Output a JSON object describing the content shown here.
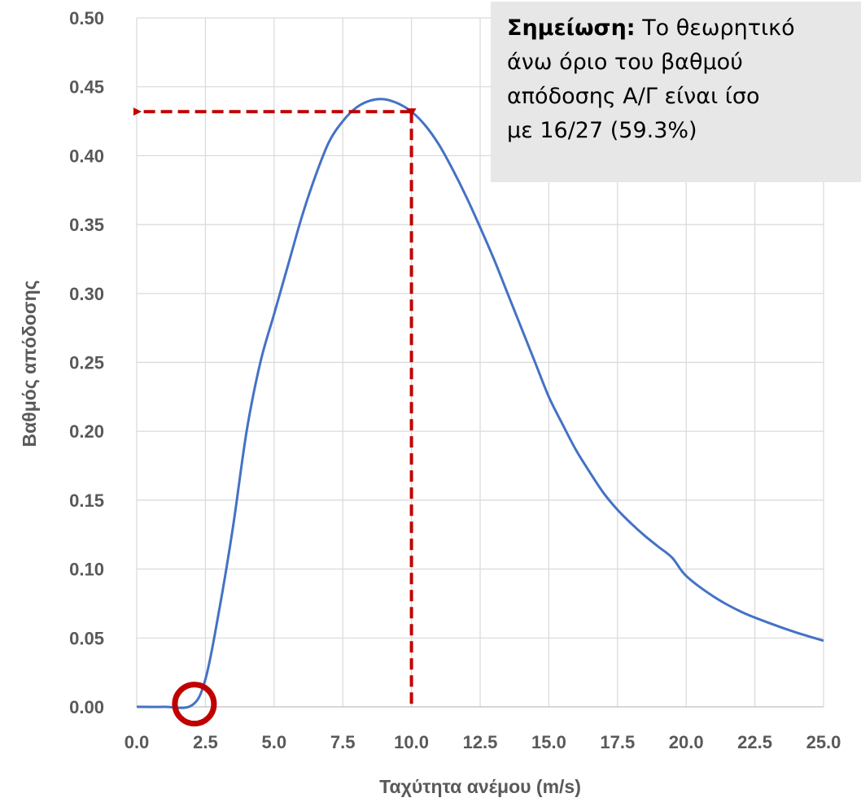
{
  "chart_data": {
    "type": "line",
    "xlabel": "Ταχύτητα ανέμου (m/s)",
    "ylabel": "Βαθμός απόδοσης",
    "xlim": [
      0,
      25
    ],
    "ylim": [
      0,
      0.5
    ],
    "grid": true,
    "x_ticks": [
      "0.0",
      "2.5",
      "5.0",
      "7.5",
      "10.0",
      "12.5",
      "15.0",
      "17.5",
      "20.0",
      "22.5",
      "25.0"
    ],
    "y_ticks": [
      "0.00",
      "0.05",
      "0.10",
      "0.15",
      "0.20",
      "0.25",
      "0.30",
      "0.35",
      "0.40",
      "0.45",
      "0.50"
    ],
    "series": [
      {
        "color": "#4472c4",
        "x": [
          0,
          1,
          2,
          2.5,
          3,
          3.5,
          4,
          4.5,
          5,
          5.5,
          6,
          6.5,
          7,
          7.5,
          8,
          8.5,
          9,
          9.5,
          10,
          10.5,
          11,
          11.5,
          12,
          12.5,
          13,
          13.5,
          14,
          14.5,
          15,
          15.5,
          16,
          16.5,
          17,
          17.5,
          18,
          18.5,
          19,
          19.5,
          20,
          21,
          22,
          23,
          24,
          25
        ],
        "y": [
          0,
          0,
          0.001,
          0.02,
          0.07,
          0.13,
          0.2,
          0.25,
          0.285,
          0.32,
          0.355,
          0.385,
          0.41,
          0.425,
          0.435,
          0.44,
          0.441,
          0.438,
          0.432,
          0.422,
          0.408,
          0.39,
          0.37,
          0.348,
          0.325,
          0.3,
          0.275,
          0.25,
          0.225,
          0.205,
          0.186,
          0.17,
          0.155,
          0.143,
          0.133,
          0.124,
          0.116,
          0.108,
          0.095,
          0.08,
          0.069,
          0.061,
          0.054,
          0.048
        ]
      }
    ],
    "annotations": {
      "marker_point": [
        10.0,
        0.432
      ],
      "marker_color": "#c00000",
      "circle_point": [
        2.1,
        0.002
      ]
    }
  },
  "note": {
    "bold": "Σημείωση:",
    "line1": " Το θεωρητικό",
    "line2": "άνω όριο του βαθμού",
    "line3": "απόδοσης Α/Γ είναι ίσο",
    "line4": "με 16/27 (59.3%)"
  }
}
